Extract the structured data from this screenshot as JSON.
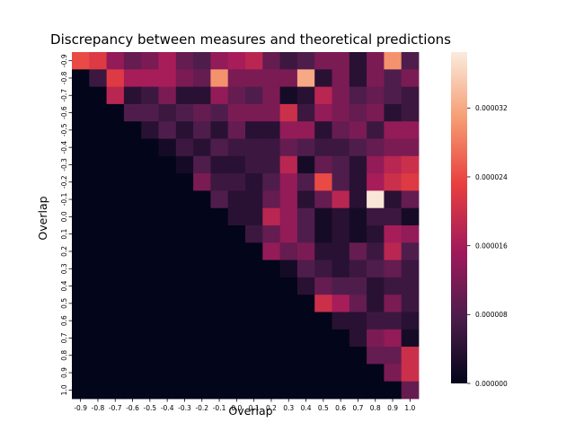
{
  "chart_data": {
    "type": "heatmap",
    "title": "Discrepancy between measures and theoretical predictions",
    "xlabel": "Overlap",
    "ylabel": "Overlap",
    "x_ticks": [
      "-0.9",
      "-0.8",
      "-0.7",
      "-0.6",
      "-0.5",
      "-0.4",
      "-0.3",
      "-0.2",
      "-0.1",
      "0.0",
      "0.1",
      "0.2",
      "0.3",
      "0.4",
      "0.5",
      "0.6",
      "0.7",
      "0.8",
      "0.9",
      "1.0"
    ],
    "y_ticks": [
      "-0.9",
      "-0.8",
      "-0.7",
      "-0.6",
      "-0.5",
      "-0.4",
      "-0.3",
      "-0.2",
      "-0.1",
      "0.0",
      "0.1",
      "0.2",
      "0.3",
      "0.4",
      "0.5",
      "0.6",
      "0.7",
      "0.8",
      "0.9",
      "1.0"
    ],
    "colorbar": {
      "vmin": 0,
      "vmax": 3.85e-05,
      "ticks": [
        0,
        8e-06,
        1.6e-05,
        2.4e-05,
        3.2e-05
      ],
      "tick_labels": [
        "0.000000",
        "0.000008",
        "0.000016",
        "0.000024",
        "0.000032"
      ],
      "colormap": "rocket",
      "colors": [
        "#03051a",
        "#4c1d4b",
        "#a11a5b",
        "#e83f3f",
        "#f69c73",
        "#faebdd"
      ]
    },
    "values_1e6": [
      [
        24,
        22,
        14,
        10,
        12,
        16,
        10,
        8,
        14,
        16,
        18,
        10,
        6,
        8,
        12,
        12,
        4,
        12,
        30,
        8
      ],
      [
        0,
        6,
        22,
        16,
        16,
        16,
        12,
        10,
        30,
        12,
        12,
        12,
        12,
        32,
        4,
        12,
        4,
        12,
        8,
        12
      ],
      [
        0,
        0,
        18,
        4,
        6,
        12,
        4,
        4,
        14,
        10,
        8,
        12,
        2,
        4,
        18,
        12,
        8,
        10,
        8,
        6
      ],
      [
        0,
        0,
        0,
        8,
        8,
        6,
        8,
        10,
        8,
        12,
        12,
        12,
        20,
        6,
        14,
        12,
        10,
        12,
        4,
        6
      ],
      [
        0,
        0,
        0,
        0,
        4,
        8,
        4,
        8,
        4,
        10,
        4,
        4,
        14,
        14,
        4,
        10,
        12,
        6,
        14,
        14
      ],
      [
        0,
        0,
        0,
        0,
        0,
        2,
        6,
        4,
        8,
        6,
        6,
        6,
        10,
        8,
        6,
        6,
        8,
        10,
        12,
        12
      ],
      [
        0,
        0,
        0,
        0,
        0,
        0,
        2,
        8,
        4,
        4,
        6,
        6,
        18,
        2,
        10,
        8,
        4,
        14,
        18,
        20
      ],
      [
        0,
        0,
        0,
        0,
        0,
        0,
        0,
        12,
        6,
        6,
        4,
        8,
        14,
        8,
        24,
        8,
        4,
        16,
        20,
        22
      ],
      [
        0,
        0,
        0,
        0,
        0,
        0,
        0,
        0,
        8,
        4,
        4,
        10,
        14,
        4,
        10,
        18,
        4,
        38,
        4,
        10
      ],
      [
        0,
        0,
        0,
        0,
        0,
        0,
        0,
        0,
        0,
        4,
        4,
        18,
        14,
        8,
        2,
        4,
        2,
        6,
        6,
        2
      ],
      [
        0,
        0,
        0,
        0,
        0,
        0,
        0,
        0,
        0,
        0,
        6,
        10,
        14,
        8,
        2,
        4,
        2,
        4,
        16,
        14
      ],
      [
        0,
        0,
        0,
        0,
        0,
        0,
        0,
        0,
        0,
        0,
        0,
        14,
        10,
        12,
        4,
        4,
        10,
        6,
        18,
        8
      ],
      [
        0,
        0,
        0,
        0,
        0,
        0,
        0,
        0,
        0,
        0,
        0,
        0,
        2,
        8,
        6,
        4,
        6,
        8,
        10,
        6
      ],
      [
        0,
        0,
        0,
        0,
        0,
        0,
        0,
        0,
        0,
        0,
        0,
        0,
        0,
        4,
        10,
        8,
        8,
        4,
        6,
        6
      ],
      [
        0,
        0,
        0,
        0,
        0,
        0,
        0,
        0,
        0,
        0,
        0,
        0,
        0,
        0,
        20,
        16,
        10,
        4,
        12,
        6
      ],
      [
        0,
        0,
        0,
        0,
        0,
        0,
        0,
        0,
        0,
        0,
        0,
        0,
        0,
        0,
        0,
        4,
        4,
        6,
        6,
        4
      ],
      [
        0,
        0,
        0,
        0,
        0,
        0,
        0,
        0,
        0,
        0,
        0,
        0,
        0,
        0,
        0,
        0,
        4,
        12,
        14,
        2
      ],
      [
        0,
        0,
        0,
        0,
        0,
        0,
        0,
        0,
        0,
        0,
        0,
        0,
        0,
        0,
        0,
        0,
        0,
        10,
        10,
        20
      ],
      [
        0,
        0,
        0,
        0,
        0,
        0,
        0,
        0,
        0,
        0,
        0,
        0,
        0,
        0,
        0,
        0,
        0,
        0,
        12,
        20
      ],
      [
        0,
        0,
        0,
        0,
        0,
        0,
        0,
        0,
        0,
        0,
        0,
        0,
        0,
        0,
        0,
        0,
        0,
        0,
        0,
        10
      ]
    ]
  }
}
